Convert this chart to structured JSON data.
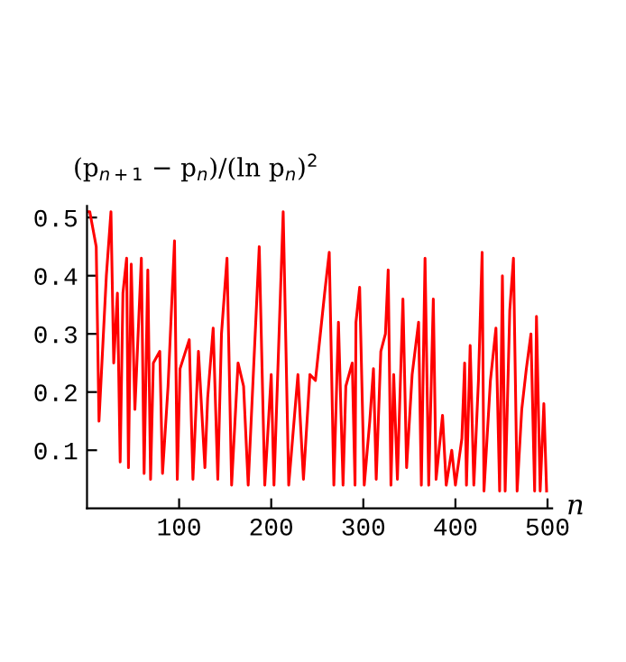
{
  "chart_data": {
    "type": "line",
    "xlabel": "n",
    "ylabel": "(p$_{n+1}$ − p$_{n}$)/(ln p$_{n}$)$^{2}$",
    "x": [
      1,
      3,
      10,
      13,
      21,
      26,
      29,
      33,
      36,
      39,
      43,
      45,
      48,
      52,
      59,
      62,
      66,
      69,
      72,
      79,
      82,
      88,
      95,
      98,
      101,
      111,
      115,
      121,
      128,
      131,
      137,
      142,
      146,
      152,
      157,
      164,
      170,
      175,
      187,
      193,
      200,
      203,
      213,
      219,
      229,
      235,
      242,
      248,
      258,
      263,
      268,
      273,
      278,
      281,
      288,
      291,
      292,
      296,
      301,
      307,
      311,
      314,
      319,
      324,
      327,
      330,
      333,
      337,
      343,
      347,
      353,
      360,
      363,
      367,
      371,
      376,
      379,
      386,
      390,
      396,
      400,
      407,
      410,
      412,
      416,
      420,
      425,
      429,
      431,
      438,
      444,
      448,
      451,
      454,
      459,
      463,
      467,
      472,
      477,
      482,
      486,
      488,
      492,
      496,
      499
    ],
    "series": [
      {
        "color": "#ff0000",
        "values": [
          0.51,
          0.51,
          0.45,
          0.15,
          0.4,
          0.51,
          0.25,
          0.37,
          0.08,
          0.37,
          0.43,
          0.07,
          0.42,
          0.17,
          0.43,
          0.06,
          0.41,
          0.05,
          0.25,
          0.27,
          0.06,
          0.21,
          0.46,
          0.05,
          0.24,
          0.29,
          0.05,
          0.27,
          0.07,
          0.19,
          0.31,
          0.05,
          0.3,
          0.43,
          0.04,
          0.25,
          0.21,
          0.04,
          0.45,
          0.04,
          0.23,
          0.04,
          0.51,
          0.04,
          0.23,
          0.05,
          0.23,
          0.22,
          0.37,
          0.44,
          0.04,
          0.32,
          0.04,
          0.21,
          0.25,
          0.04,
          0.32,
          0.38,
          0.04,
          0.15,
          0.24,
          0.05,
          0.27,
          0.3,
          0.41,
          0.04,
          0.23,
          0.05,
          0.36,
          0.07,
          0.23,
          0.32,
          0.04,
          0.43,
          0.04,
          0.36,
          0.05,
          0.16,
          0.04,
          0.1,
          0.04,
          0.12,
          0.25,
          0.04,
          0.28,
          0.04,
          0.22,
          0.44,
          0.03,
          0.22,
          0.31,
          0.03,
          0.4,
          0.03,
          0.34,
          0.43,
          0.03,
          0.17,
          0.24,
          0.3,
          0.03,
          0.33,
          0.03,
          0.18,
          0.03
        ]
      }
    ],
    "xlim": [
      0,
      505
    ],
    "ylim": [
      0,
      0.52
    ],
    "xticks": [
      100,
      200,
      300,
      400,
      500
    ],
    "yticks": [
      0.1,
      0.2,
      0.3,
      0.4,
      0.5
    ],
    "grid": false,
    "line_style": "solid",
    "marker": "none"
  }
}
